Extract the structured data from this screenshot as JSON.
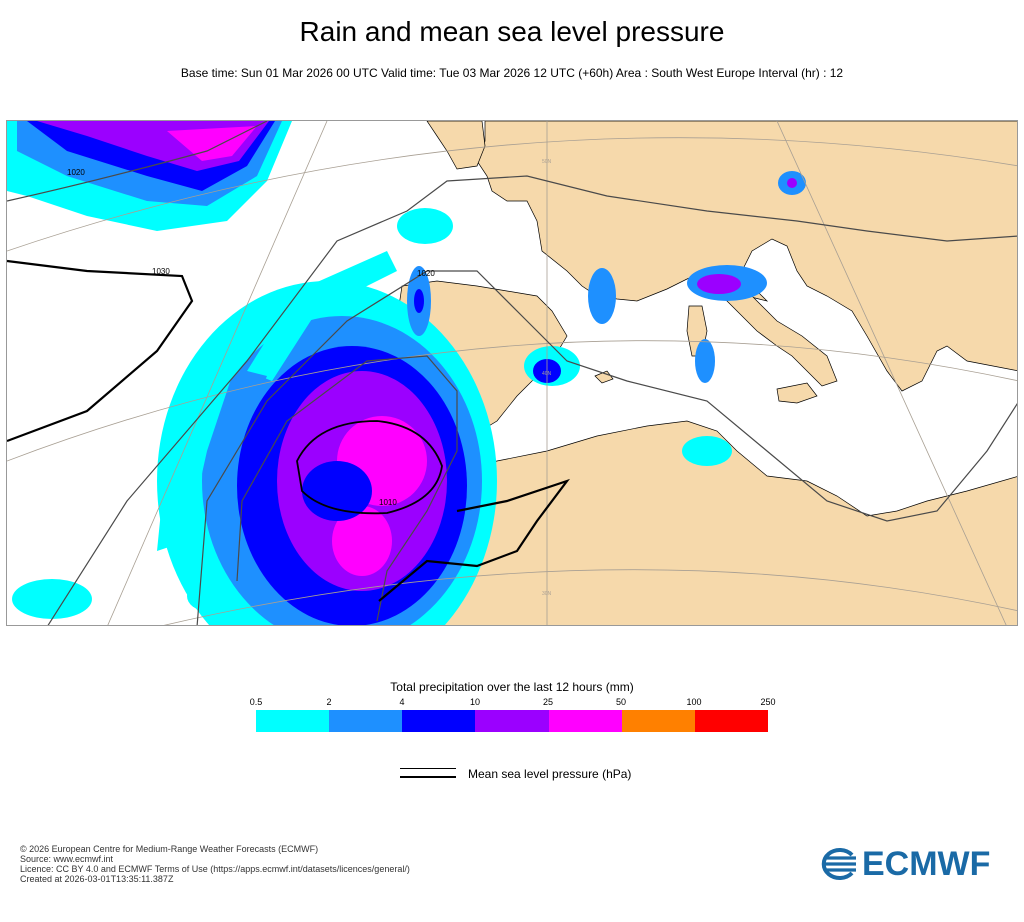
{
  "header": {
    "title": "Rain and mean sea level pressure",
    "subtitle": "Base time: Sun 01 Mar 2026 00 UTC Valid time: Tue 03 Mar 2026 12 UTC (+60h) Area : South West Europe Interval (hr) : 12"
  },
  "map": {
    "land_color": "#f6d9ab",
    "sea_color": "#ffffff",
    "isobar_labels": [
      "1020",
      "1030",
      "1020",
      "1010"
    ],
    "graticule_labels": [
      "50N",
      "40N",
      "30N"
    ]
  },
  "legend": {
    "title": "Total precipitation over the last 12 hours (mm)",
    "ticks": [
      "0.5",
      "2",
      "4",
      "10",
      "25",
      "50",
      "100",
      "250"
    ],
    "colors": [
      "#00ffff",
      "#1e90ff",
      "#0000ff",
      "#9b00ff",
      "#ff00ff",
      "#ff8000",
      "#ff0000"
    ],
    "mslp_label": "Mean sea level pressure (hPa)"
  },
  "credits": {
    "line1": "© 2026 European Centre for Medium-Range Weather Forecasts (ECMWF)",
    "line2": "Source: www.ecmwf.int",
    "line3": "Licence: CC BY 4.0 and ECMWF Terms of Use (https://apps.ecmwf.int/datasets/licences/general/)",
    "line4": "Created at 2026-03-01T13:35:11.387Z"
  },
  "logo": {
    "text": "ECMWF",
    "color": "#1a6aa6"
  }
}
